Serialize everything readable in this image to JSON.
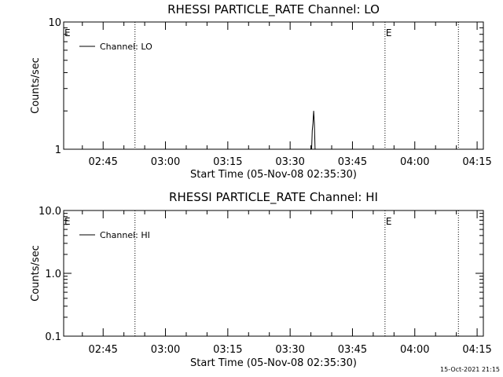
{
  "footer": {
    "timestamp": "15-Oct-2021 21:15"
  },
  "chart_data": [
    {
      "type": "line",
      "title": "RHESSI PARTICLE_RATE Channel: LO",
      "xlabel": "Start Time (05-Nov-08 02:35:30)",
      "ylabel": "Counts/sec",
      "yscale": "log",
      "ylim": [
        1,
        10
      ],
      "yticks": [
        "1",
        "10"
      ],
      "xlim": [
        "02:35:30",
        "04:16:30"
      ],
      "xticks": [
        "02:45",
        "03:00",
        "03:15",
        "03:30",
        "03:45",
        "04:00",
        "04:15"
      ],
      "grid": false,
      "legend_position": "top-left",
      "series": [
        {
          "name": "Channel: LO",
          "x": [
            "03:35:10",
            "03:35:20",
            "03:35:30",
            "03:35:40",
            "03:35:50",
            "03:36:00",
            "03:36:10"
          ],
          "y": [
            1,
            1.4,
            1.6,
            2.0,
            1.6,
            1.0,
            1.0
          ]
        }
      ],
      "event_lines": [
        {
          "time": "02:52:40",
          "label": ""
        },
        {
          "time": "03:52:50",
          "label": "E"
        },
        {
          "time": "04:10:30",
          "label": ""
        }
      ],
      "left_marker": "E"
    },
    {
      "type": "line",
      "title": "RHESSI PARTICLE_RATE Channel: HI",
      "xlabel": "Start Time (05-Nov-08 02:35:30)",
      "ylabel": "Counts/sec",
      "yscale": "log",
      "ylim": [
        0.1,
        10
      ],
      "yticks": [
        "0.1",
        "1.0",
        "10.0"
      ],
      "xlim": [
        "02:35:30",
        "04:16:30"
      ],
      "xticks": [
        "02:45",
        "03:00",
        "03:15",
        "03:30",
        "03:45",
        "04:00",
        "04:15"
      ],
      "grid": false,
      "legend_position": "top-left",
      "series": [
        {
          "name": "Channel: HI",
          "x": [],
          "y": []
        }
      ],
      "event_lines": [
        {
          "time": "02:52:40",
          "label": ""
        },
        {
          "time": "03:52:50",
          "label": "E"
        },
        {
          "time": "04:10:30",
          "label": ""
        }
      ],
      "left_marker": "E"
    }
  ]
}
